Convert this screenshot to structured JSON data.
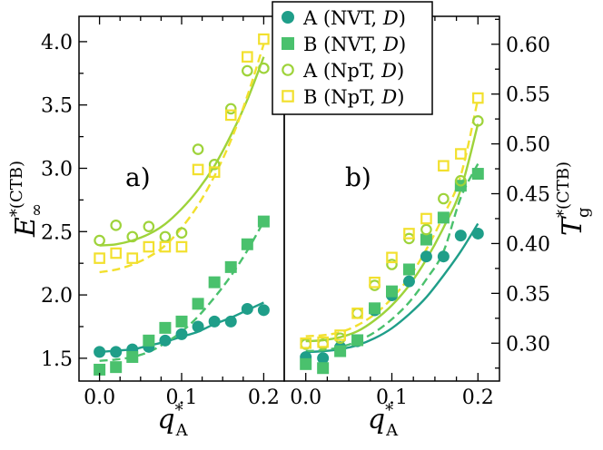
{
  "chart_data": [
    {
      "type": "scatter",
      "panel_label": "a)",
      "xlim": [
        -0.025,
        0.225
      ],
      "ylim": [
        1.32,
        4.2
      ],
      "xticks": [
        0.0,
        0.1,
        0.2
      ],
      "xtick_labels": [
        "0.0",
        "0.1",
        "0.2"
      ],
      "yticks": [
        1.5,
        2.0,
        2.5,
        3.0,
        3.5,
        4.0
      ],
      "ytick_labels": [
        "1.5",
        "2.0",
        "2.5",
        "3.0",
        "3.5",
        "4.0"
      ],
      "xlabel": {
        "main": "q",
        "sup": "*",
        "sub": "A"
      },
      "ylabel": {
        "main": "E",
        "sup": "*(CTB)",
        "sub": "∞"
      },
      "series": [
        {
          "name": "A (NVT, D)",
          "marker": "circle-filled",
          "color": "#1f9e89",
          "x": [
            0.0,
            0.02,
            0.04,
            0.06,
            0.08,
            0.1,
            0.12,
            0.14,
            0.16,
            0.18,
            0.2
          ],
          "y": [
            1.55,
            1.55,
            1.57,
            1.59,
            1.64,
            1.69,
            1.75,
            1.79,
            1.79,
            1.89,
            1.88
          ],
          "fit": [
            1.55,
            1.56,
            1.57,
            1.6,
            1.63,
            1.67,
            1.71,
            1.77,
            1.82,
            1.88,
            1.94
          ],
          "fit_style": "solid"
        },
        {
          "name": "B (NVT, D)",
          "marker": "square-filled",
          "color": "#4ac16d",
          "x": [
            0.0,
            0.02,
            0.04,
            0.06,
            0.08,
            0.1,
            0.12,
            0.14,
            0.16,
            0.18,
            0.2
          ],
          "y": [
            1.41,
            1.43,
            1.51,
            1.64,
            1.74,
            1.79,
            1.93,
            2.1,
            2.22,
            2.4,
            2.58
          ],
          "fit": [
            1.48,
            1.49,
            1.51,
            1.55,
            1.62,
            1.71,
            1.83,
            1.98,
            2.15,
            2.35,
            2.58
          ],
          "fit_style": "dashed"
        },
        {
          "name": "A (NpT, D)",
          "marker": "circle-open",
          "color": "#9ed33a",
          "x": [
            0.0,
            0.02,
            0.04,
            0.06,
            0.08,
            0.1,
            0.12,
            0.14,
            0.16,
            0.18,
            0.2
          ],
          "y": [
            2.43,
            2.55,
            2.46,
            2.54,
            2.46,
            2.49,
            3.15,
            3.03,
            3.47,
            3.77,
            3.79
          ],
          "fit": [
            2.39,
            2.4,
            2.43,
            2.48,
            2.56,
            2.68,
            2.83,
            3.02,
            3.26,
            3.54,
            3.88
          ],
          "fit_style": "solid"
        },
        {
          "name": "B (NpT, D)",
          "marker": "square-open",
          "color": "#f2e02e",
          "x": [
            0.0,
            0.02,
            0.04,
            0.06,
            0.08,
            0.1,
            0.12,
            0.14,
            0.16,
            0.18,
            0.2
          ],
          "y": [
            2.29,
            2.33,
            2.29,
            2.38,
            2.38,
            2.38,
            2.99,
            2.97,
            3.42,
            3.88,
            4.02
          ],
          "fit": [
            2.18,
            2.2,
            2.24,
            2.3,
            2.39,
            2.53,
            2.71,
            2.94,
            3.22,
            3.57,
            3.98
          ],
          "fit_style": "dashed"
        }
      ]
    },
    {
      "type": "scatter",
      "panel_label": "b)",
      "xlim": [
        -0.025,
        0.225
      ],
      "ylim": [
        0.262,
        0.628
      ],
      "xticks": [
        0.0,
        0.1,
        0.2
      ],
      "xtick_labels": [
        "0.0",
        "0.1",
        "0.2"
      ],
      "yticks": [
        0.3,
        0.35,
        0.4,
        0.45,
        0.5,
        0.55,
        0.6
      ],
      "ytick_labels": [
        "0.30",
        "0.35",
        "0.40",
        "0.45",
        "0.50",
        "0.55",
        "0.60"
      ],
      "xlabel": {
        "main": "q",
        "sup": "*",
        "sub": "A"
      },
      "ylabel": {
        "main": "T",
        "sup": "*(CTB)",
        "sub": "g"
      },
      "series": [
        {
          "name": "A (NVT, D)",
          "marker": "circle-filled",
          "color": "#1f9e89",
          "x": [
            0.0,
            0.02,
            0.04,
            0.06,
            0.08,
            0.1,
            0.12,
            0.14,
            0.16,
            0.18,
            0.2
          ],
          "y": [
            0.286,
            0.285,
            0.296,
            0.302,
            0.333,
            0.348,
            0.362,
            0.387,
            0.387,
            0.408,
            0.41
          ],
          "fit": [
            0.291,
            0.292,
            0.294,
            0.298,
            0.305,
            0.315,
            0.329,
            0.346,
            0.368,
            0.392,
            0.42
          ],
          "fit_style": "solid"
        },
        {
          "name": "B (NVT, D)",
          "marker": "square-filled",
          "color": "#4ac16d",
          "x": [
            0.0,
            0.02,
            0.04,
            0.06,
            0.08,
            0.1,
            0.12,
            0.14,
            0.16,
            0.18,
            0.2
          ],
          "y": [
            0.279,
            0.275,
            0.292,
            0.303,
            0.335,
            0.352,
            0.374,
            0.404,
            0.426,
            0.458,
            0.47
          ],
          "fit": [
            0.292,
            0.293,
            0.296,
            0.302,
            0.311,
            0.324,
            0.341,
            0.364,
            0.392,
            0.446,
            0.48
          ],
          "fit_style": "dashed"
        },
        {
          "name": "A (NpT, D)",
          "marker": "circle-open",
          "color": "#9ed33a",
          "x": [
            0.0,
            0.02,
            0.04,
            0.06,
            0.08,
            0.1,
            0.12,
            0.14,
            0.16,
            0.18,
            0.2
          ],
          "y": [
            0.299,
            0.299,
            0.305,
            0.33,
            0.358,
            0.379,
            0.405,
            0.414,
            0.445,
            0.463,
            0.523
          ],
          "fit": [
            0.302,
            0.303,
            0.306,
            0.312,
            0.323,
            0.338,
            0.358,
            0.384,
            0.416,
            0.454,
            0.52
          ],
          "fit_style": "solid"
        },
        {
          "name": "B (NpT, D)",
          "marker": "square-open",
          "color": "#f2e02e",
          "x": [
            0.0,
            0.02,
            0.04,
            0.06,
            0.08,
            0.1,
            0.12,
            0.14,
            0.16,
            0.18,
            0.2
          ],
          "y": [
            0.3,
            0.301,
            0.308,
            0.33,
            0.361,
            0.386,
            0.41,
            0.425,
            0.478,
            0.49,
            0.546
          ],
          "fit": [
            0.307,
            0.308,
            0.311,
            0.318,
            0.329,
            0.345,
            0.366,
            0.394,
            0.428,
            0.468,
            0.545
          ],
          "fit_style": "dashed"
        }
      ]
    }
  ],
  "legend": {
    "entries": [
      {
        "prefix": "A (NVT, ",
        "ital": "D",
        "suffix": ")",
        "marker": "circle-filled",
        "color": "#1f9e89"
      },
      {
        "prefix": "B (NVT, ",
        "ital": "D",
        "suffix": ")",
        "marker": "square-filled",
        "color": "#4ac16d"
      },
      {
        "prefix": "A (NpT, ",
        "ital": "D",
        "suffix": ")",
        "marker": "circle-open",
        "color": "#9ed33a"
      },
      {
        "prefix": "B (NpT, ",
        "ital": "D",
        "suffix": ")",
        "marker": "square-open",
        "color": "#f2e02e"
      }
    ]
  }
}
